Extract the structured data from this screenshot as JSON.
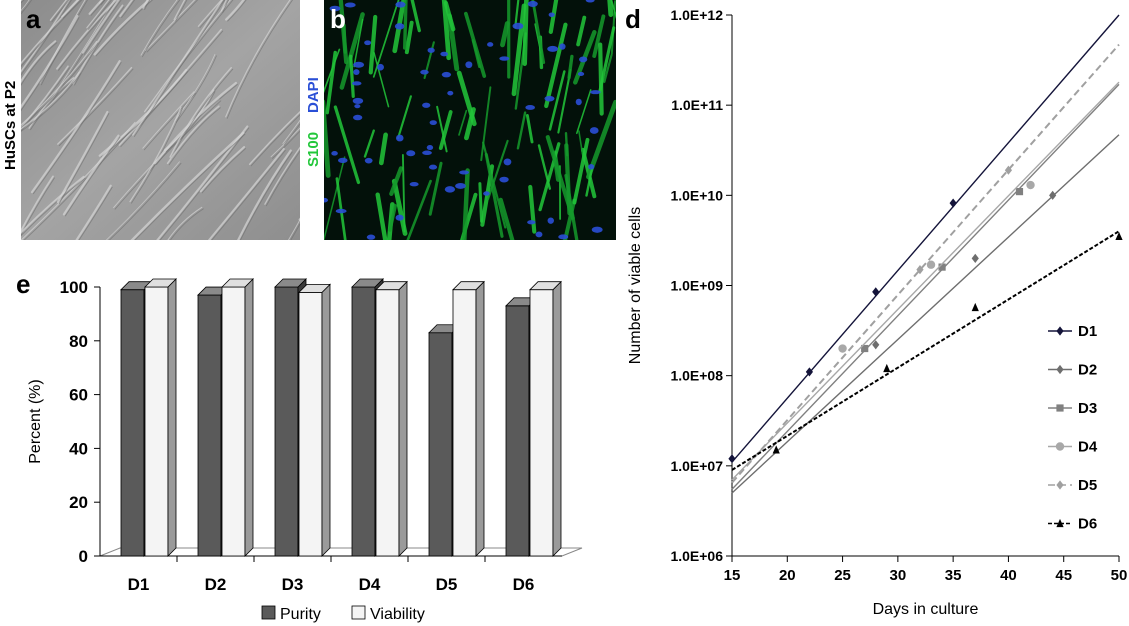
{
  "panels": {
    "a": {
      "letter": "a",
      "side_label": "HuSCs at P2"
    },
    "b": {
      "letter": "b",
      "stain_green": "S100",
      "stain_blue": "DAPI"
    },
    "d": {
      "letter": "d"
    },
    "e": {
      "letter": "e"
    }
  },
  "colors": {
    "purity": "#5a5a5a",
    "viability": "#f4f4f4",
    "green_stain": "#22c73a",
    "blue_stain": "#2a4fd6"
  },
  "chart_data": [
    {
      "panel": "e",
      "type": "bar",
      "categories": [
        "D1",
        "D2",
        "D3",
        "D4",
        "D5",
        "D6"
      ],
      "series": [
        {
          "name": "Purity",
          "values": [
            99,
            97,
            100,
            100,
            83,
            93
          ]
        },
        {
          "name": "Viability",
          "values": [
            100,
            100,
            98,
            99,
            99,
            99
          ]
        }
      ],
      "ylabel": "Percent (%)",
      "ylim": [
        0,
        100
      ],
      "yticks": [
        0,
        20,
        40,
        60,
        80,
        100
      ],
      "legend_position": "bottom",
      "style": "3d"
    },
    {
      "panel": "d",
      "type": "scatter",
      "xlabel": "Days in culture",
      "ylabel": "Number of viable cells",
      "xlim": [
        15,
        50
      ],
      "xticks": [
        15,
        20,
        25,
        30,
        35,
        40,
        45,
        50
      ],
      "yscale": "log",
      "ylim": [
        1000000,
        1000000000000
      ],
      "ytick_labels": [
        "1.0E+06",
        "1.0E+07",
        "1.0E+08",
        "1.0E+09",
        "1.0E+10",
        "1.0E+11",
        "1.0E+12"
      ],
      "legend_position": "right",
      "series": [
        {
          "name": "D1",
          "marker": "diamond",
          "color": "#14143a",
          "line": "solid",
          "points": [
            [
              15,
              12000000
            ],
            [
              22,
              110000000
            ],
            [
              28,
              850000000
            ],
            [
              35,
              8200000000
            ]
          ],
          "fit": [
            [
              15,
              11000000
            ],
            [
              50,
              1000000000000
            ]
          ]
        },
        {
          "name": "D2",
          "marker": "diamond",
          "color": "#6e6e6e",
          "line": "solid",
          "points": [
            [
              28,
              220000000
            ],
            [
              37,
              2000000000
            ],
            [
              44,
              10000000000
            ]
          ],
          "fit": [
            [
              15,
              5000000
            ],
            [
              50,
              47000000000
            ]
          ]
        },
        {
          "name": "D3",
          "marker": "square",
          "color": "#808080",
          "line": "solid",
          "points": [
            [
              27,
              200000000
            ],
            [
              34,
              1600000000
            ],
            [
              41,
              11000000000
            ]
          ],
          "fit": [
            [
              15,
              5500000
            ],
            [
              50,
              170000000000
            ]
          ]
        },
        {
          "name": "D4",
          "marker": "circle",
          "color": "#a8a8a8",
          "line": "solid",
          "points": [
            [
              25,
              200000000
            ],
            [
              33,
              1700000000
            ],
            [
              42,
              13000000000
            ]
          ],
          "fit": [
            [
              15,
              7000000
            ],
            [
              50,
              180000000000
            ]
          ]
        },
        {
          "name": "D5",
          "marker": "diamond",
          "color": "#a0a0a0",
          "line": "dashed",
          "points": [
            [
              32,
              1500000000
            ],
            [
              40,
              19000000000
            ]
          ],
          "fit": [
            [
              15,
              6500000
            ],
            [
              50,
              470000000000
            ]
          ]
        },
        {
          "name": "D6",
          "marker": "triangle",
          "color": "#000000",
          "line": "dotted",
          "points": [
            [
              19,
              15000000
            ],
            [
              29,
              120000000
            ],
            [
              37,
              570000000
            ],
            [
              50,
              3500000000
            ]
          ],
          "fit": [
            [
              15,
              9000000
            ],
            [
              50,
              4000000000
            ]
          ]
        }
      ]
    }
  ]
}
